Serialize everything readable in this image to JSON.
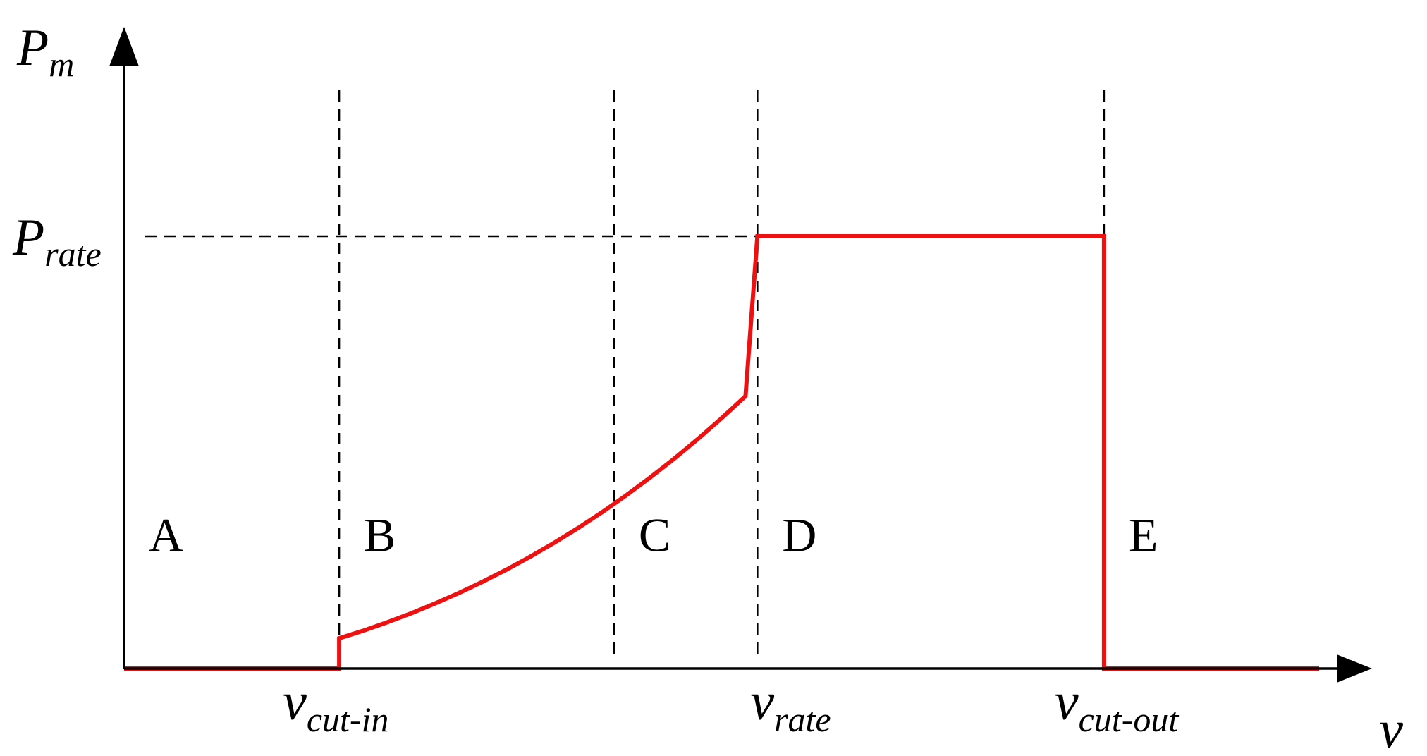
{
  "chart_data": {
    "type": "line",
    "title": "",
    "y_axis": {
      "symbol": "P",
      "subscript": "m"
    },
    "x_axis": {
      "symbol": "v",
      "subscript": ""
    },
    "x_ticks": [
      {
        "symbol": "v",
        "subscript": "cut-in",
        "x": 0.18
      },
      {
        "symbol": "v",
        "subscript": "rate",
        "x": 0.53
      },
      {
        "symbol": "v",
        "subscript": "cut-out",
        "x": 0.82
      }
    ],
    "y_ticks": [
      {
        "symbol": "P",
        "subscript": "rate",
        "y": 1.0
      }
    ],
    "region_guides_x": [
      0.18,
      0.41,
      0.53,
      0.82
    ],
    "regions": [
      {
        "label": "A",
        "x": 0.01
      },
      {
        "label": "B",
        "x": 0.19
      },
      {
        "label": "C",
        "x": 0.42
      },
      {
        "label": "D",
        "x": 0.54
      },
      {
        "label": "E",
        "x": 0.83
      }
    ],
    "region_label_y": 0.34,
    "series": [
      {
        "color": "#ee1111",
        "points": [
          [
            0.0,
            0.0
          ],
          [
            0.18,
            0.0
          ],
          [
            0.18,
            0.07
          ],
          [
            0.2,
            0.0875
          ],
          [
            0.22,
            0.1067
          ],
          [
            0.24,
            0.1276
          ],
          [
            0.26,
            0.1502
          ],
          [
            0.28,
            0.1746
          ],
          [
            0.3,
            0.2008
          ],
          [
            0.32,
            0.2289
          ],
          [
            0.34,
            0.259
          ],
          [
            0.36,
            0.2911
          ],
          [
            0.38,
            0.3253
          ],
          [
            0.4,
            0.3617
          ],
          [
            0.42,
            0.4004
          ],
          [
            0.44,
            0.4414
          ],
          [
            0.46,
            0.4848
          ],
          [
            0.48,
            0.5307
          ],
          [
            0.5,
            0.5791
          ],
          [
            0.52,
            0.6302
          ],
          [
            0.53,
            1.0
          ],
          [
            0.82,
            1.0
          ],
          [
            0.82,
            0.0
          ],
          [
            1.0,
            0.0
          ]
        ]
      }
    ],
    "xlim": [
      0,
      1.08
    ],
    "ylim": [
      0,
      1.45
    ]
  }
}
